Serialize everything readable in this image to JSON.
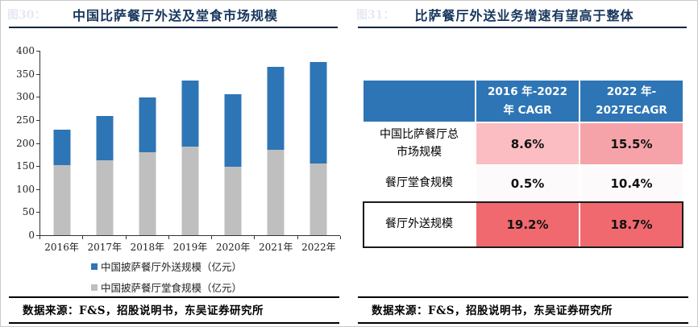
{
  "left_panel": {
    "figure_label": "图30：",
    "title": "中国比萨餐厅外送及堂食市场规模",
    "source": "数据来源：F&S，招股说明书，东吴证券研究所"
  },
  "right_panel": {
    "figure_label": "图31：",
    "title": "比萨餐厅外送业务增速有望高于整体",
    "source": "数据来源：F&S，招股说明书，东吴证券研究所",
    "table": {
      "header_cols": [
        {
          "lines": [
            "",
            ""
          ]
        },
        {
          "lines": [
            "2016 年-2022",
            "年 CAGR"
          ]
        },
        {
          "lines": [
            "2022 年-",
            "2027ECAGR"
          ]
        }
      ],
      "rows": [
        {
          "label": "中国比萨餐厅总市场规模",
          "values": [
            "8.6%",
            "15.5%"
          ],
          "value_colors": [
            "#fbbdc2",
            "#f5a3a9"
          ],
          "highlight": false,
          "height": 51
        },
        {
          "label": "餐厅堂食规模",
          "values": [
            "0.5%",
            "10.4%"
          ],
          "value_colors": [
            "#fdfafb",
            "#fdfafb"
          ],
          "highlight": false,
          "height": 43
        },
        {
          "label": "餐厅外送规模",
          "values": [
            "19.2%",
            "18.7%"
          ],
          "value_colors": [
            "#f0696f",
            "#f0696f"
          ],
          "highlight": true,
          "height": 56
        }
      ]
    }
  },
  "chart_data": {
    "type": "bar",
    "stacked": true,
    "title": "中国比萨餐厅外送及堂食市场规模",
    "categories": [
      "2016年",
      "2017年",
      "2018年",
      "2019年",
      "2020年",
      "2021年",
      "2022年"
    ],
    "series": [
      {
        "name": "中国披萨餐厅外送规模（亿元）",
        "color": "#2e75b6",
        "values": [
          76,
          95,
          118,
          142,
          157,
          179,
          219
        ]
      },
      {
        "name": "中国披萨餐厅堂食规模（亿元）",
        "color": "#bfbfbf",
        "values": [
          152,
          163,
          180,
          193,
          148,
          186,
          156
        ]
      }
    ],
    "totals": [
      228,
      258,
      298,
      335,
      305,
      365,
      375
    ],
    "ylim": [
      0,
      400
    ],
    "ytick_step": 50,
    "yticks": [
      0,
      50,
      100,
      150,
      200,
      250,
      300,
      350,
      400
    ],
    "xlabel": "",
    "ylabel": "",
    "grid": false,
    "legend_position": "bottom"
  },
  "colors": {
    "accent_navy": "#17365d",
    "table_header_blue": "#2e75b6",
    "bar_delivery_blue": "#2e75b6",
    "bar_dinein_gray": "#bfbfbf",
    "highlight_red": "#f0696f"
  }
}
